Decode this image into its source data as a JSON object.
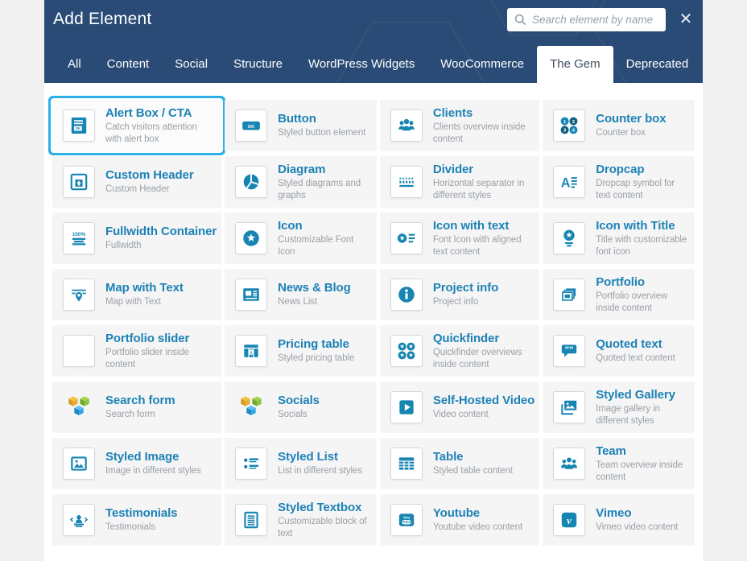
{
  "window": {
    "title": "Add Element",
    "close_glyph": "✕"
  },
  "search": {
    "placeholder": "Search element by name"
  },
  "tabs": [
    {
      "label": "All",
      "active": false
    },
    {
      "label": "Content",
      "active": false
    },
    {
      "label": "Social",
      "active": false
    },
    {
      "label": "Structure",
      "active": false
    },
    {
      "label": "WordPress Widgets",
      "active": false
    },
    {
      "label": "WooCommerce",
      "active": false
    },
    {
      "label": "The Gem",
      "active": true
    },
    {
      "label": "Deprecated",
      "active": false
    }
  ],
  "colors": {
    "header_bg": "#294b76",
    "accent": "#1685b2",
    "accent_dark": "#11607f",
    "highlight_ring": "#2bb0e8",
    "title_blue": "#1e82b5",
    "cube_yellow": [
      "#f3c23d",
      "#d89b28",
      "#e8ae32"
    ],
    "cube_green": [
      "#a4d34a",
      "#6fa933",
      "#8bc53f"
    ],
    "cube_blue": [
      "#5bc2ee",
      "#1b87c9",
      "#35a7e0"
    ]
  },
  "icon_labels": {
    "ok": "OK",
    "counter": [
      "1",
      "2",
      "3",
      "4"
    ],
    "percent": "100%",
    "dropcap": "A",
    "dollar": "$",
    "quote": "””",
    "youtube_top": "You",
    "youtube_bottom": "Tube",
    "vimeo": "v",
    "info": "i"
  },
  "grid": {
    "items": [
      {
        "title": "Alert Box / CTA",
        "description": "Catch visitors attention with alert box",
        "icon": "alert-box-cta",
        "boxed": true,
        "highlighted": true
      },
      {
        "title": "Button",
        "description": "Styled button element",
        "icon": "button",
        "boxed": true,
        "highlighted": false
      },
      {
        "title": "Clients",
        "description": "Clients overview inside content",
        "icon": "clients",
        "boxed": true,
        "highlighted": false
      },
      {
        "title": "Counter box",
        "description": "Counter box",
        "icon": "counter-box",
        "boxed": true,
        "highlighted": false
      },
      {
        "title": "Custom Header",
        "description": "Custom Header",
        "icon": "custom-header",
        "boxed": true,
        "highlighted": false
      },
      {
        "title": "Diagram",
        "description": "Styled diagrams and graphs",
        "icon": "diagram",
        "boxed": true,
        "highlighted": false
      },
      {
        "title": "Divider",
        "description": "Horizontal separator in different styles",
        "icon": "divider",
        "boxed": true,
        "highlighted": false
      },
      {
        "title": "Dropcap",
        "description": "Dropcap symbol for text content",
        "icon": "dropcap",
        "boxed": true,
        "highlighted": false
      },
      {
        "title": "Fullwidth Container",
        "description": "Fullwidth",
        "icon": "fullwidth-container",
        "boxed": true,
        "highlighted": false
      },
      {
        "title": "Icon",
        "description": "Customizable Font Icon",
        "icon": "icon",
        "boxed": true,
        "highlighted": false
      },
      {
        "title": "Icon with text",
        "description": "Font Icon with aligned text content",
        "icon": "icon-with-text",
        "boxed": true,
        "highlighted": false
      },
      {
        "title": "Icon with Title",
        "description": "Title with customizable font icon",
        "icon": "icon-with-title",
        "boxed": true,
        "highlighted": false
      },
      {
        "title": "Map with Text",
        "description": "Map with Text",
        "icon": "map-with-text",
        "boxed": true,
        "highlighted": false
      },
      {
        "title": "News & Blog",
        "description": "News List",
        "icon": "news-blog",
        "boxed": true,
        "highlighted": false
      },
      {
        "title": "Project info",
        "description": "Project info",
        "icon": "project-info",
        "boxed": true,
        "highlighted": false
      },
      {
        "title": "Portfolio",
        "description": "Portfolio overview inside content",
        "icon": "portfolio",
        "boxed": true,
        "highlighted": false
      },
      {
        "title": "Portfolio slider",
        "description": "Portfolio slider inside content",
        "icon": "portfolio-slider",
        "boxed": true,
        "highlighted": false
      },
      {
        "title": "Pricing table",
        "description": "Styled pricing table",
        "icon": "pricing-table",
        "boxed": true,
        "highlighted": false
      },
      {
        "title": "Quickfinder",
        "description": "Quickfinder overviews inside content",
        "icon": "quickfinder",
        "boxed": true,
        "highlighted": false
      },
      {
        "title": "Quoted text",
        "description": "Quoted text content",
        "icon": "quoted-text",
        "boxed": true,
        "highlighted": false
      },
      {
        "title": "Search form",
        "description": "Search form",
        "icon": "gem-cubes",
        "boxed": false,
        "highlighted": false
      },
      {
        "title": "Socials",
        "description": "Socials",
        "icon": "gem-cubes",
        "boxed": false,
        "highlighted": false
      },
      {
        "title": "Self-Hosted Video",
        "description": "Video content",
        "icon": "video-play",
        "boxed": true,
        "highlighted": false
      },
      {
        "title": "Styled Gallery",
        "description": "Image gallery in different styles",
        "icon": "styled-gallery",
        "boxed": true,
        "highlighted": false
      },
      {
        "title": "Styled Image",
        "description": "Image in different styles",
        "icon": "styled-image",
        "boxed": true,
        "highlighted": false
      },
      {
        "title": "Styled List",
        "description": "List in different styles",
        "icon": "styled-list",
        "boxed": true,
        "highlighted": false
      },
      {
        "title": "Table",
        "description": "Styled table content",
        "icon": "table",
        "boxed": true,
        "highlighted": false
      },
      {
        "title": "Team",
        "description": "Team overview inside content",
        "icon": "team",
        "boxed": true,
        "highlighted": false
      },
      {
        "title": "Testimonials",
        "description": "Testimonials",
        "icon": "testimonials",
        "boxed": true,
        "highlighted": false
      },
      {
        "title": "Styled Textbox",
        "description": "Customizable block of text",
        "icon": "styled-textbox",
        "boxed": true,
        "highlighted": false
      },
      {
        "title": "Youtube",
        "description": "Youtube video content",
        "icon": "youtube",
        "boxed": true,
        "highlighted": false
      },
      {
        "title": "Vimeo",
        "description": "Vimeo video content",
        "icon": "vimeo",
        "boxed": true,
        "highlighted": false
      }
    ]
  }
}
